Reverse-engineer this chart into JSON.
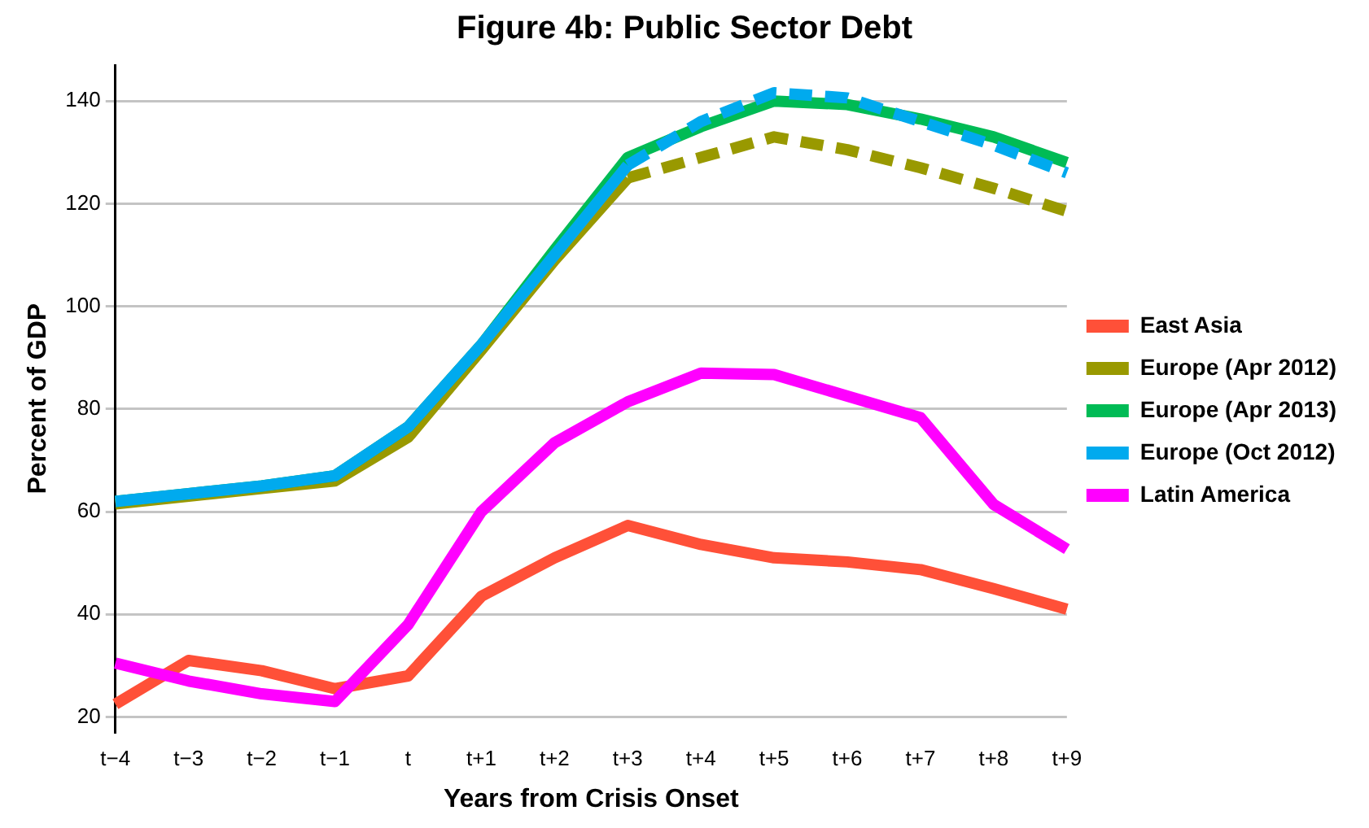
{
  "chart_data": {
    "type": "line",
    "title": "Figure 4b: Public Sector Debt",
    "xlabel": "Years from Crisis Onset",
    "ylabel": "Percent of GDP",
    "categories": [
      "t−4",
      "t−3",
      "t−2",
      "t−1",
      "t",
      "t+1",
      "t+2",
      "t+3",
      "t+4",
      "t+5",
      "t+6",
      "t+7",
      "t+8",
      "t+9"
    ],
    "series": [
      {
        "name": "East Asia",
        "color": "#ff5038",
        "values": [
          22.5,
          31,
          29,
          25.5,
          28,
          43.5,
          51,
          57.3,
          53.6,
          51,
          50.2,
          48.7,
          45,
          41
        ]
      },
      {
        "name": "Europe (Apr 2012)",
        "color": "#999900",
        "values": [
          61.5,
          63,
          64.5,
          66,
          74.5,
          91.5,
          109,
          125,
          null,
          null,
          null,
          null,
          null,
          null
        ]
      },
      {
        "color": "#999900",
        "line_style": "dashed",
        "values": [
          null,
          null,
          null,
          null,
          null,
          null,
          null,
          125,
          129,
          133,
          130.5,
          127,
          123,
          118.5
        ]
      },
      {
        "name": "Europe (Apr 2013)",
        "color": "#00bb55",
        "values": [
          62,
          63.5,
          65,
          67,
          76.5,
          92.5,
          111,
          129,
          135,
          140,
          139.3,
          136.5,
          133,
          128
        ]
      },
      {
        "name": "Europe (Oct 2012)",
        "color": "#00aaee",
        "values": [
          62,
          63.5,
          65,
          67,
          76.5,
          92.5,
          110,
          127.5,
          null,
          null,
          null,
          null,
          null,
          null
        ]
      },
      {
        "color": "#00aaee",
        "line_style": "dashed",
        "values": [
          null,
          null,
          null,
          null,
          null,
          null,
          null,
          127.5,
          136,
          141.6,
          140.6,
          136,
          131.4,
          126
        ]
      },
      {
        "name": "Latin America",
        "color": "#ff00ff",
        "values": [
          30.5,
          27,
          24.5,
          23,
          38,
          60,
          73.4,
          81.4,
          87,
          86.7,
          82.5,
          78.3,
          61.4,
          52.7
        ]
      }
    ],
    "ylim": [
      17,
      147
    ],
    "yticks": [
      20,
      40,
      60,
      80,
      100,
      120,
      140
    ],
    "grid": "y",
    "legend": "right",
    "marker": "none",
    "line_style": "solid"
  }
}
